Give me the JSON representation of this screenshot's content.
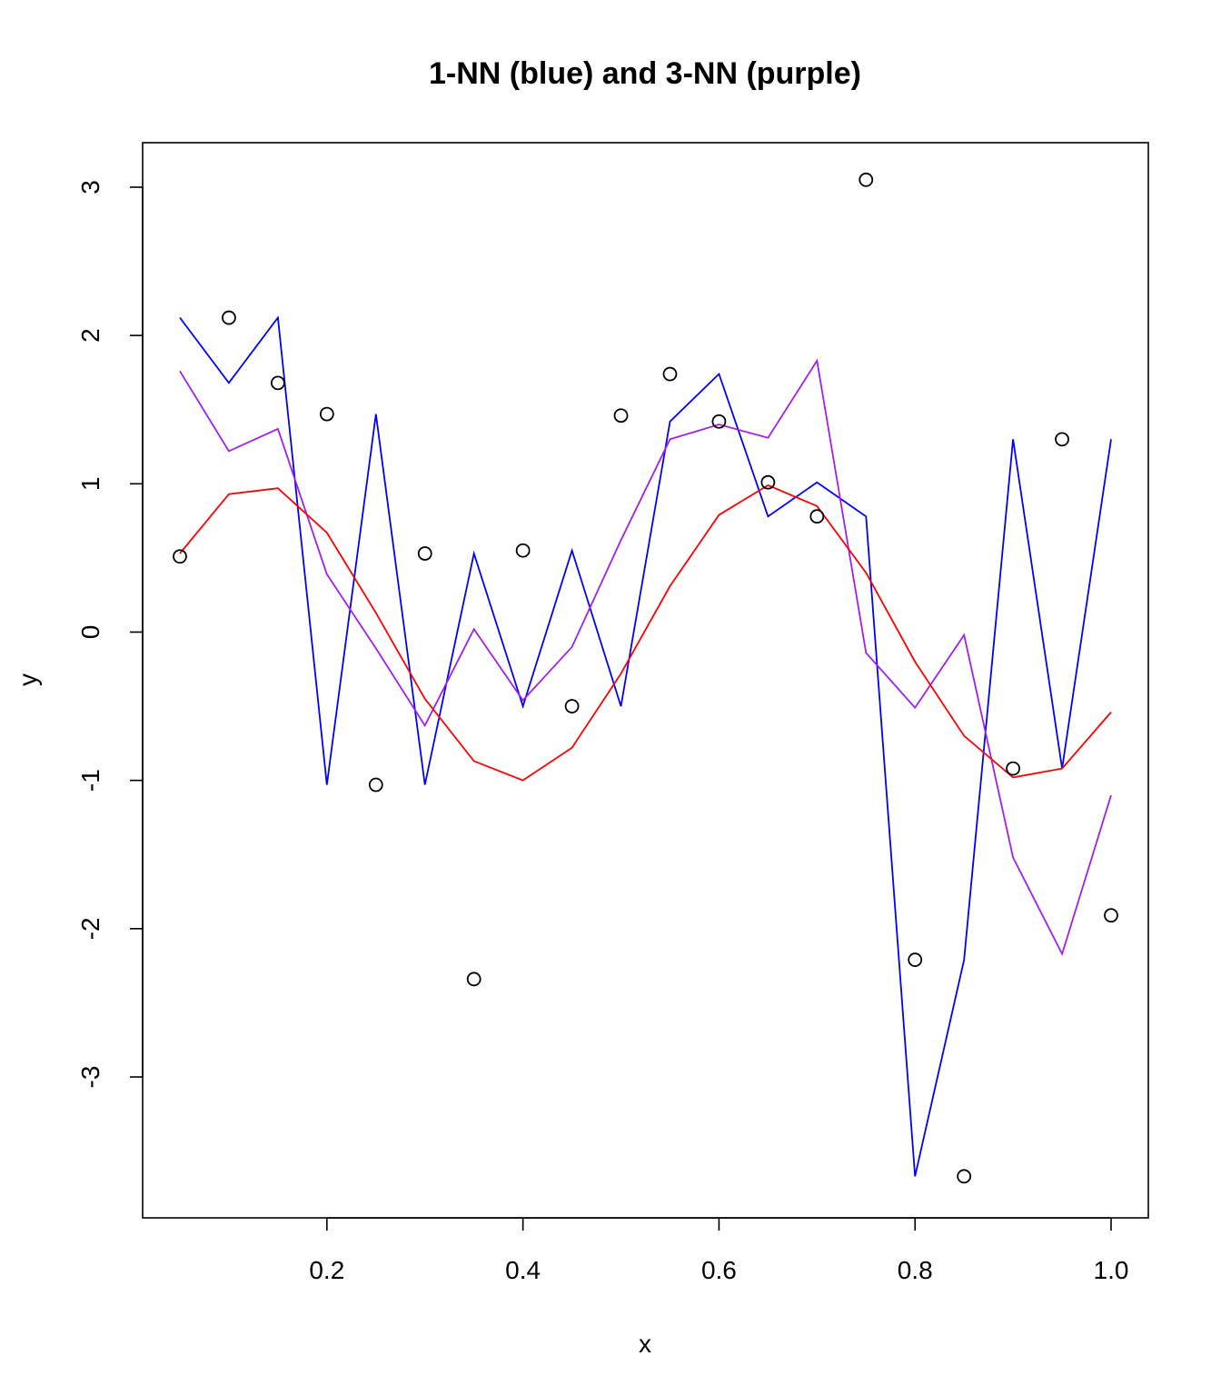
{
  "chart_data": {
    "type": "line",
    "title": "1-NN (blue) and 3-NN (purple)",
    "xlabel": "x",
    "ylabel": "y",
    "xlim": [
      0.012,
      1.038
    ],
    "ylim": [
      -3.95,
      3.3
    ],
    "xticks": [
      0.2,
      0.4,
      0.6,
      0.8,
      1.0
    ],
    "xtick_labels": [
      "0.2",
      "0.4",
      "0.6",
      "0.8",
      "1.0"
    ],
    "yticks": [
      -3,
      -2,
      -1,
      0,
      1,
      2,
      3
    ],
    "ytick_labels": [
      "-3",
      "-2",
      "-1",
      "0",
      "1",
      "2",
      "3"
    ],
    "grid": false,
    "x": [
      0.05,
      0.1,
      0.15,
      0.2,
      0.25,
      0.3,
      0.35,
      0.4,
      0.45,
      0.5,
      0.55,
      0.6,
      0.65,
      0.7,
      0.75,
      0.8,
      0.85,
      0.9,
      0.95,
      1.0
    ],
    "points": [
      0.51,
      2.12,
      1.68,
      1.47,
      -1.03,
      0.53,
      -2.34,
      0.55,
      -0.5,
      1.46,
      1.74,
      1.42,
      1.01,
      0.78,
      3.05,
      -2.21,
      -3.67,
      -0.92,
      1.3,
      -1.91
    ],
    "series": [
      {
        "color": "#0000ff",
        "values": [
          2.12,
          1.68,
          2.12,
          -1.03,
          1.47,
          -1.03,
          0.53,
          -0.5,
          0.55,
          -0.5,
          1.42,
          1.74,
          0.78,
          1.01,
          0.78,
          -3.67,
          -2.21,
          1.3,
          -0.92,
          1.3
        ]
      },
      {
        "color": "#a020f0",
        "values": [
          1.76,
          1.22,
          1.37,
          0.39,
          -0.11,
          -0.63,
          0.02,
          -0.46,
          -0.1,
          0.62,
          1.3,
          1.4,
          1.31,
          1.83,
          -0.14,
          -0.51,
          -0.02,
          -1.52,
          -2.17,
          -1.1
        ]
      },
      {
        "color": "#ff0000",
        "values": [
          0.53,
          0.93,
          0.97,
          0.67,
          0.13,
          -0.45,
          -0.87,
          -1.0,
          -0.78,
          -0.28,
          0.31,
          0.79,
          0.99,
          0.85,
          0.4,
          -0.2,
          -0.7,
          -0.98,
          -0.92,
          -0.54
        ]
      }
    ],
    "point_color": "#000000"
  }
}
